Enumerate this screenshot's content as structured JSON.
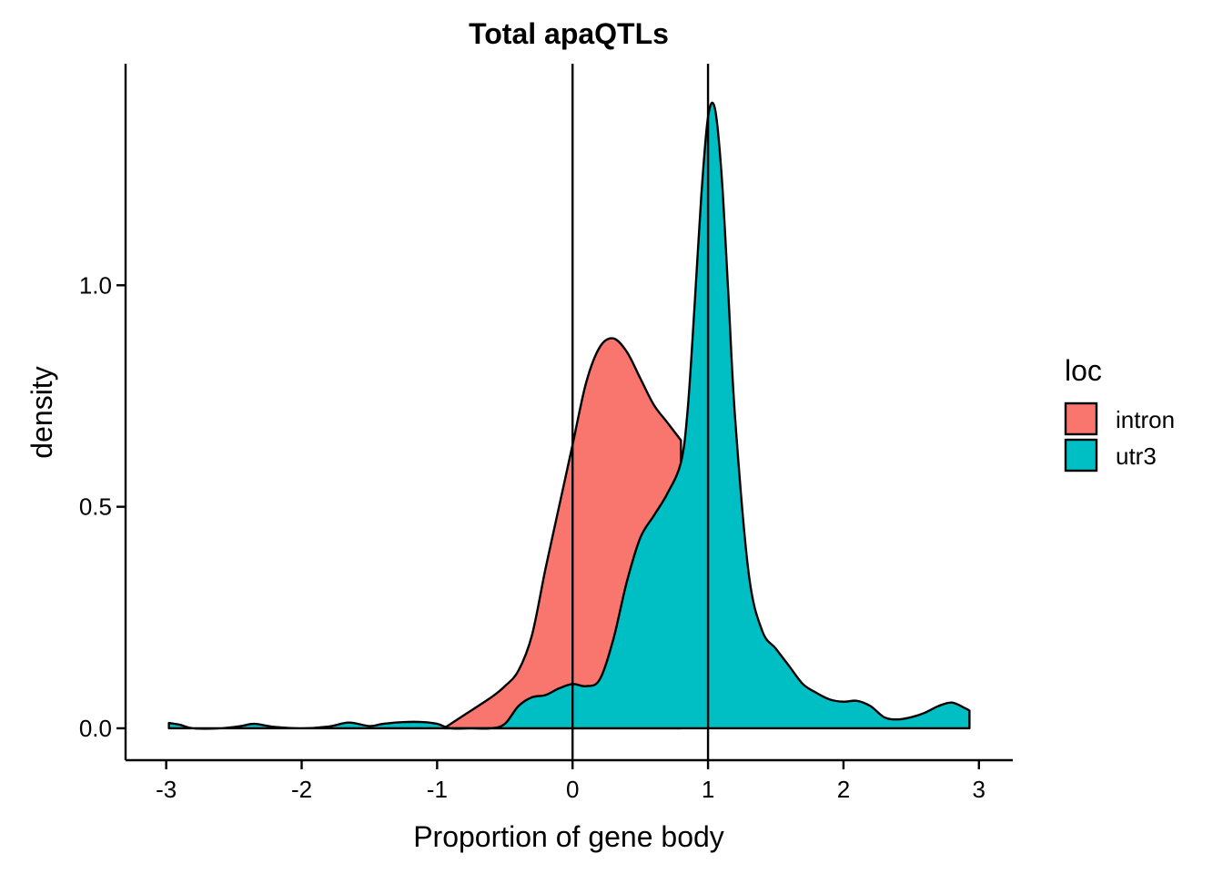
{
  "chart_data": {
    "type": "area",
    "subtype": "density",
    "title": "Total apaQTLs",
    "xlabel": "Proportion of gene body",
    "ylabel": "density",
    "xlim": [
      -3.3,
      3.25
    ],
    "ylim": [
      -0.072,
      1.5
    ],
    "x_ticks": [
      -3,
      -2,
      -1,
      0,
      1,
      2,
      3
    ],
    "x_tick_labels": [
      "-3",
      "-2",
      "-1",
      "0",
      "1",
      "2",
      "3"
    ],
    "y_ticks": [
      0.0,
      0.5,
      1.0
    ],
    "y_tick_labels": [
      "0.0",
      "0.5",
      "1.0"
    ],
    "vlines": [
      0,
      1
    ],
    "legend": {
      "title": "loc",
      "position": "right"
    },
    "series": [
      {
        "name": "intron",
        "color": "#F8766D",
        "x": [
          -0.95,
          -0.8,
          -0.6,
          -0.5,
          -0.4,
          -0.3,
          -0.2,
          -0.1,
          0.0,
          0.1,
          0.2,
          0.3,
          0.4,
          0.5,
          0.6,
          0.7,
          0.8
        ],
        "y": [
          0.0,
          0.03,
          0.07,
          0.095,
          0.13,
          0.21,
          0.36,
          0.5,
          0.64,
          0.78,
          0.86,
          0.88,
          0.85,
          0.79,
          0.73,
          0.69,
          0.65
        ]
      },
      {
        "name": "utr3",
        "color": "#00BFC4",
        "x": [
          -2.98,
          -2.9,
          -2.8,
          -2.6,
          -2.45,
          -2.35,
          -2.2,
          -2.0,
          -1.8,
          -1.65,
          -1.5,
          -1.4,
          -1.25,
          -1.1,
          -1.0,
          -0.9,
          -0.75,
          -0.6,
          -0.5,
          -0.4,
          -0.3,
          -0.2,
          -0.1,
          0.0,
          0.1,
          0.2,
          0.3,
          0.4,
          0.5,
          0.6,
          0.7,
          0.8,
          0.85,
          0.9,
          0.95,
          1.0,
          1.05,
          1.1,
          1.15,
          1.2,
          1.3,
          1.4,
          1.5,
          1.6,
          1.7,
          1.8,
          1.9,
          2.0,
          2.1,
          2.2,
          2.3,
          2.4,
          2.5,
          2.6,
          2.7,
          2.8,
          2.9,
          2.93
        ],
        "y": [
          0.012,
          0.008,
          0.0,
          0.0,
          0.005,
          0.01,
          0.003,
          0.0,
          0.004,
          0.013,
          0.005,
          0.01,
          0.014,
          0.014,
          0.01,
          0.0,
          0.0,
          0.0,
          0.01,
          0.05,
          0.07,
          0.075,
          0.09,
          0.1,
          0.095,
          0.11,
          0.2,
          0.33,
          0.43,
          0.48,
          0.53,
          0.6,
          0.72,
          0.95,
          1.2,
          1.38,
          1.4,
          1.25,
          0.98,
          0.7,
          0.35,
          0.22,
          0.18,
          0.14,
          0.1,
          0.08,
          0.065,
          0.06,
          0.062,
          0.05,
          0.025,
          0.02,
          0.025,
          0.035,
          0.05,
          0.058,
          0.045,
          0.04
        ]
      }
    ]
  }
}
